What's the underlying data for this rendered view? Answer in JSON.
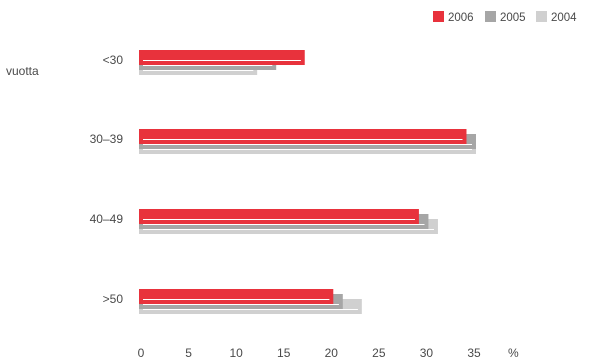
{
  "chart_data": {
    "type": "bar",
    "orientation": "horizontal",
    "ylabel": "vuotta",
    "unit": "%",
    "categories": [
      "<30",
      "30–39",
      "40–49",
      ">50"
    ],
    "series": [
      {
        "name": "2006",
        "color": "#e8323c",
        "values": [
          17,
          34,
          29,
          20
        ]
      },
      {
        "name": "2005",
        "color": "#a6a6a6",
        "values": [
          14,
          35,
          30,
          21
        ]
      },
      {
        "name": "2004",
        "color": "#d0d0d0",
        "values": [
          12,
          35,
          31,
          23
        ]
      }
    ],
    "xlim": [
      0,
      35
    ],
    "xticks": [
      0,
      5,
      10,
      15,
      20,
      25,
      30,
      35
    ],
    "legend_position": "top-right"
  }
}
